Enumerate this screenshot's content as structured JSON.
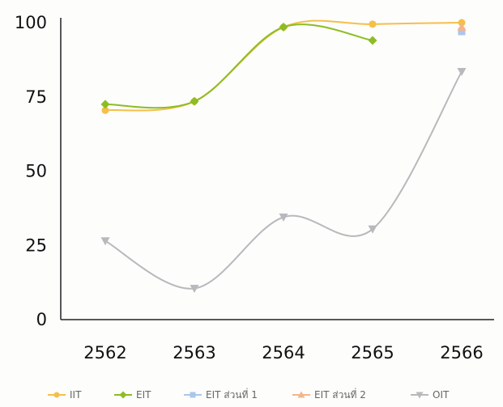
{
  "chart_data": {
    "type": "line",
    "title": "",
    "xlabel": "",
    "ylabel": "",
    "categories": [
      "2562",
      "2563",
      "2564",
      "2565",
      "2566"
    ],
    "ylim": [
      0,
      100
    ],
    "yticks": [
      "0",
      "25",
      "50",
      "75",
      "100"
    ],
    "grid": false,
    "legend_position": "bottom",
    "series": [
      {
        "name": "IIT",
        "color": "#f5bf4a",
        "marker": "circle",
        "values": [
          70.5,
          73.5,
          98.5,
          99.5,
          100
        ]
      },
      {
        "name": "EIT",
        "color": "#8cbd22",
        "marker": "diamond",
        "values": [
          72.5,
          73.5,
          98.5,
          94,
          null
        ]
      },
      {
        "name": "EIT ส่วนที่ 1",
        "color": "#a9c6ec",
        "marker": "square",
        "values": [
          null,
          null,
          null,
          null,
          97
        ]
      },
      {
        "name": "EIT ส่วนที่ 2",
        "color": "#f3b58c",
        "marker": "triangle",
        "values": [
          null,
          null,
          null,
          null,
          98.5
        ]
      },
      {
        "name": "OIT",
        "color": "#b9b9bd",
        "marker": "triangle-down",
        "values": [
          26.5,
          10.5,
          34.5,
          30.5,
          83.5
        ]
      }
    ]
  }
}
